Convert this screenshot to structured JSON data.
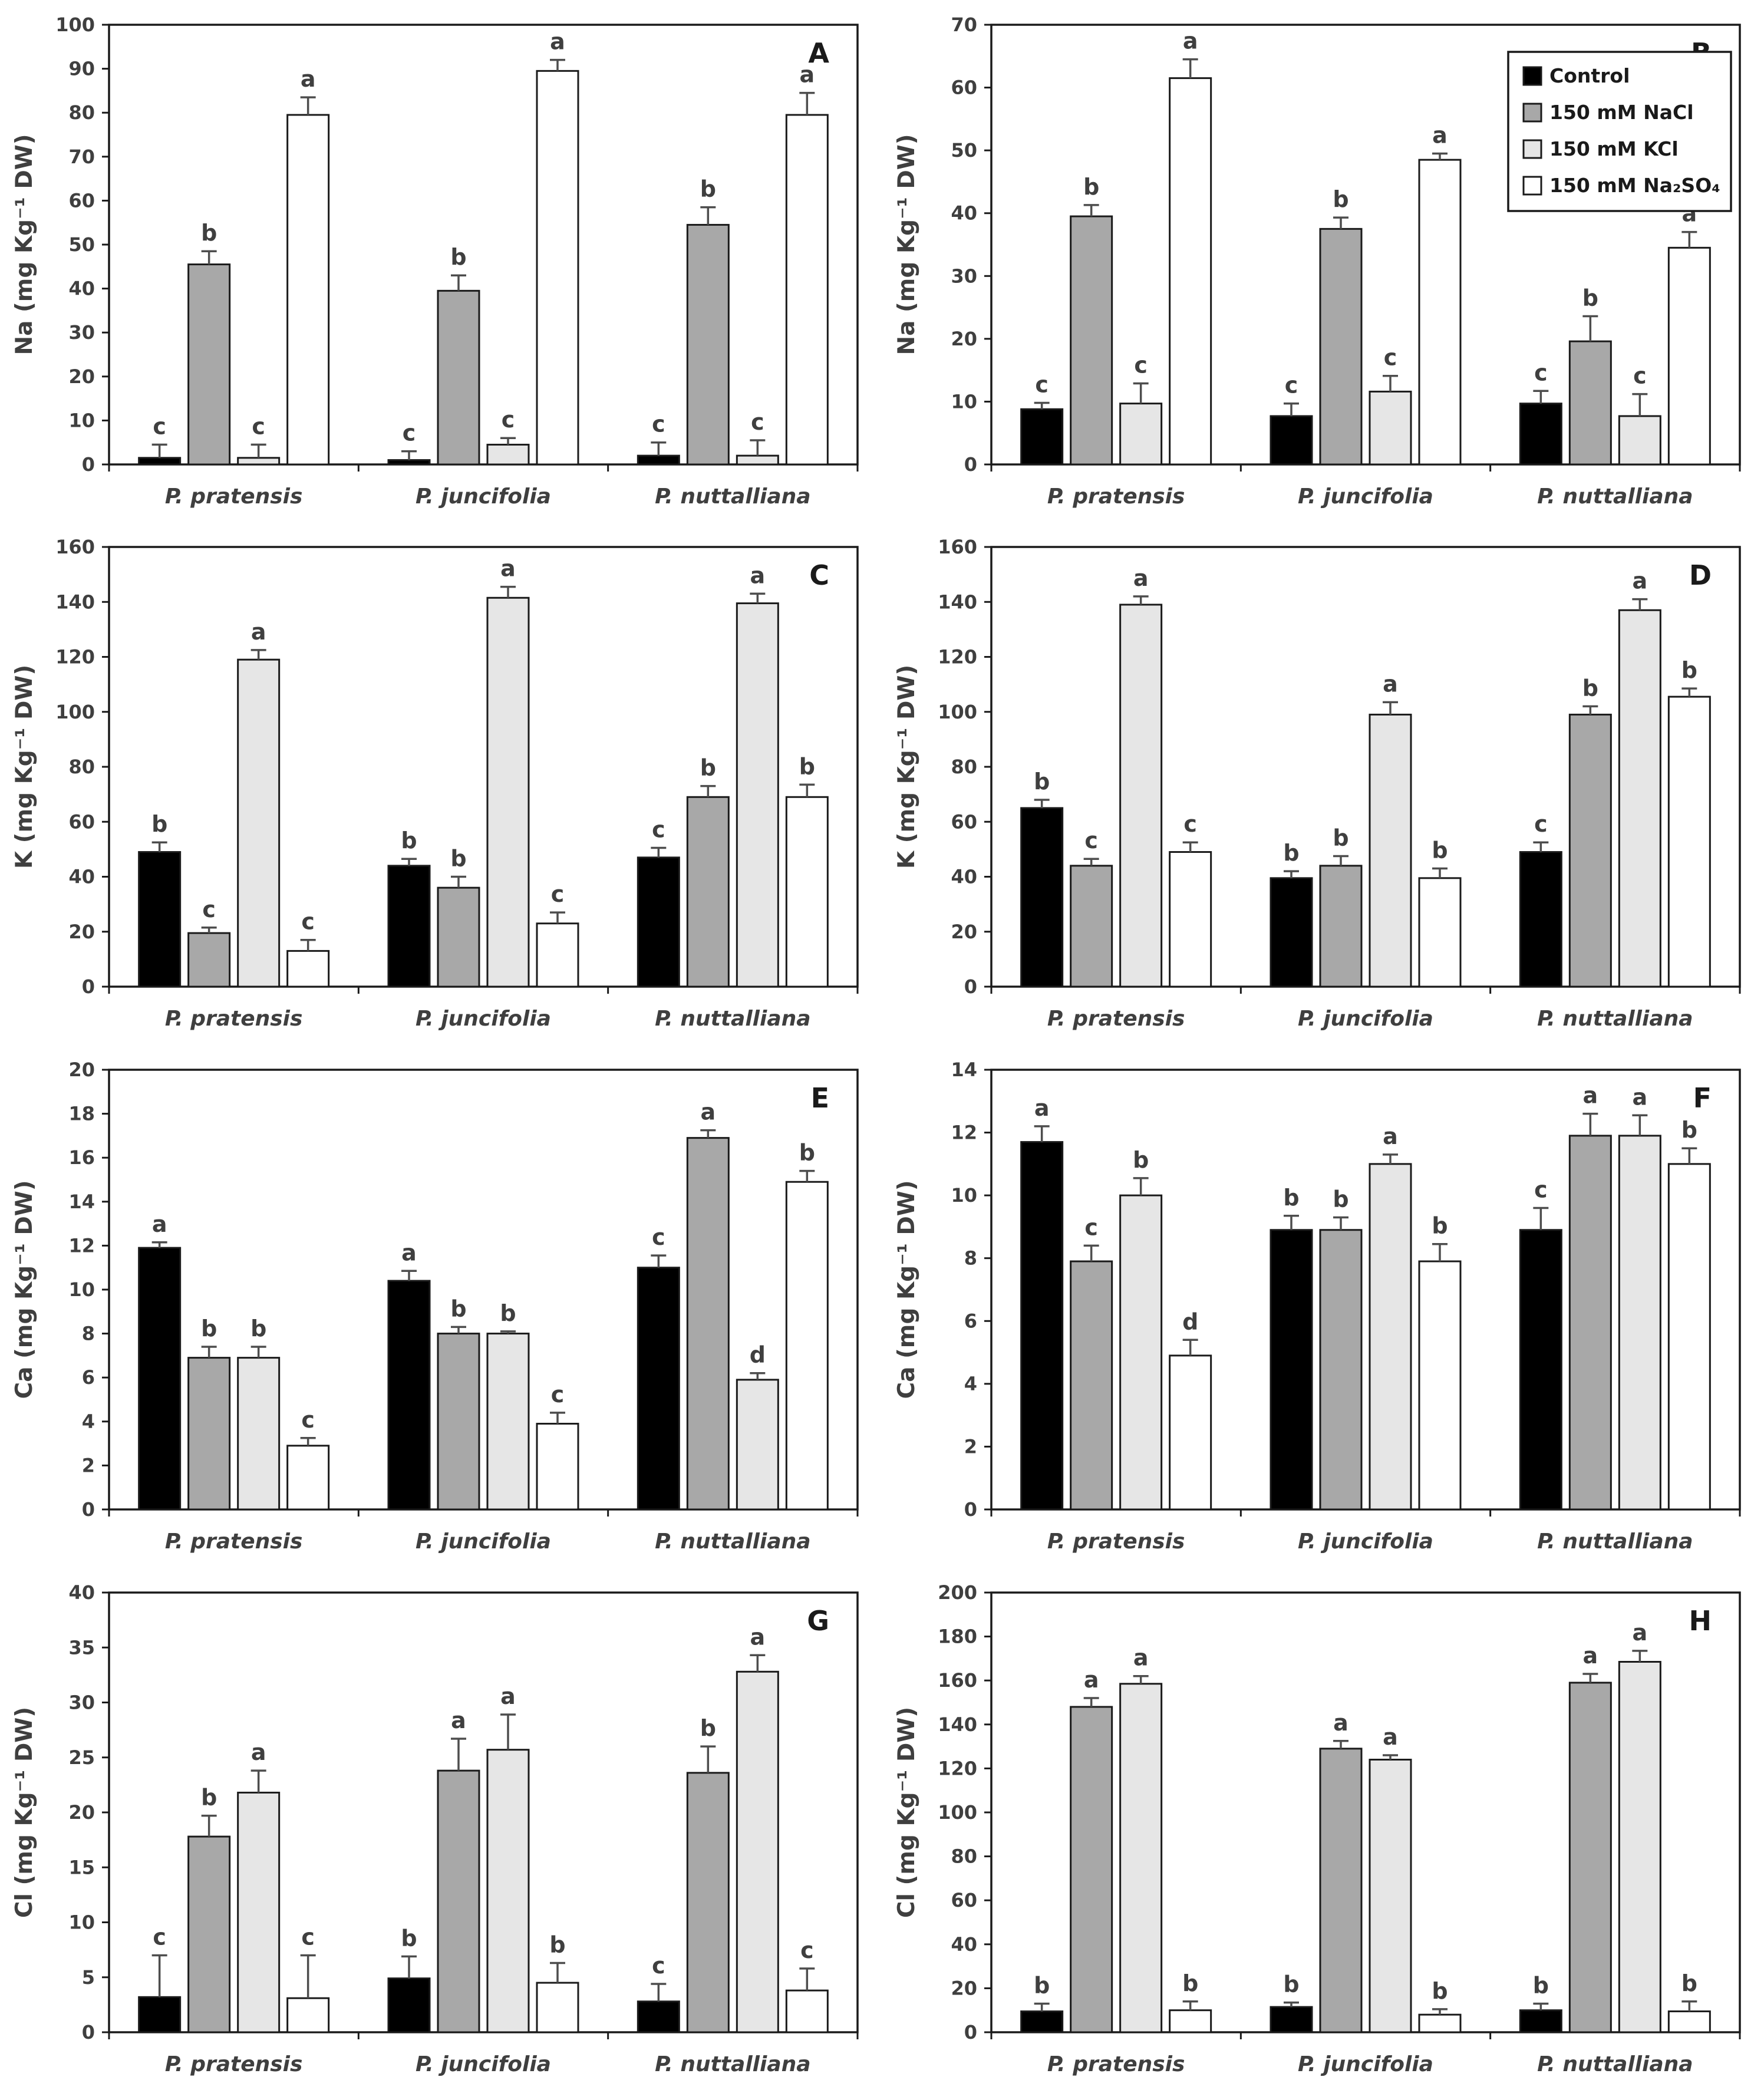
{
  "figure_title": "",
  "species": [
    "P. pratensis",
    "P. juncifolia",
    "P. nuttalliana"
  ],
  "treatments": [
    "Control",
    "150 mM NaCl",
    "150 mM KCl",
    "150 mM Na₂SO₄"
  ],
  "legend": {
    "entries": [
      "Control",
      "150 mM NaCl",
      "150 mM KCl",
      "150 mM Na₂SO₄"
    ],
    "position": "top-right-panel-B"
  },
  "colors": {
    "bar_fills": [
      "#000000",
      "#a8a8a8",
      "#e6e6e6",
      "#ffffff"
    ],
    "bar_border": "#1a1a1a",
    "axis": "#1a1a1a",
    "error_bar": "#4d4d4d",
    "text": "#3f3f3f",
    "panel_letter": "#1a1a1a",
    "background": "#ffffff"
  },
  "chart_data": [
    {
      "type": "bar",
      "panel": "A",
      "ylabel": "Na (mg Kg⁻¹ DW)",
      "xlabel": "",
      "ylim": [
        0,
        100
      ],
      "ystep": 10,
      "grid": false,
      "show_legend": false,
      "categories": [
        "P. pratensis",
        "P. juncifolia",
        "P. nuttalliana"
      ],
      "series": [
        {
          "name": "Control",
          "values": [
            1.5,
            1.0,
            2.0
          ],
          "errors": [
            3.0,
            2.0,
            3.0
          ],
          "letters": [
            "c",
            "c",
            "c"
          ]
        },
        {
          "name": "150 mM NaCl",
          "values": [
            45.5,
            39.5,
            54.5
          ],
          "errors": [
            3.0,
            3.5,
            4.0
          ],
          "letters": [
            "b",
            "b",
            "b"
          ]
        },
        {
          "name": "150 mM KCl",
          "values": [
            1.5,
            4.5,
            2.0
          ],
          "errors": [
            3.0,
            1.5,
            3.5
          ],
          "letters": [
            "c",
            "c",
            "c"
          ]
        },
        {
          "name": "150 mM Na₂SO₄",
          "values": [
            79.5,
            89.5,
            79.5
          ],
          "errors": [
            4.0,
            2.5,
            5.0
          ],
          "letters": [
            "a",
            "a",
            "a"
          ]
        }
      ]
    },
    {
      "type": "bar",
      "panel": "B",
      "ylabel": "Na (mg Kg⁻¹ DW)",
      "xlabel": "",
      "ylim": [
        0,
        70
      ],
      "ystep": 10,
      "grid": false,
      "show_legend": true,
      "categories": [
        "P. pratensis",
        "P. juncifolia",
        "P. nuttalliana"
      ],
      "series": [
        {
          "name": "Control",
          "values": [
            8.8,
            7.7,
            9.7
          ],
          "errors": [
            1.0,
            2.0,
            2.0
          ],
          "letters": [
            "c",
            "c",
            "c"
          ]
        },
        {
          "name": "150 mM NaCl",
          "values": [
            39.5,
            37.5,
            19.6
          ],
          "errors": [
            1.8,
            1.8,
            4.0
          ],
          "letters": [
            "b",
            "b",
            "b"
          ]
        },
        {
          "name": "150 mM KCl",
          "values": [
            9.7,
            11.6,
            7.7
          ],
          "errors": [
            3.2,
            2.5,
            3.5
          ],
          "letters": [
            "c",
            "c",
            "c"
          ]
        },
        {
          "name": "150 mM Na₂SO₄",
          "values": [
            61.5,
            48.5,
            34.5
          ],
          "errors": [
            3.0,
            1.0,
            2.5
          ],
          "letters": [
            "a",
            "a",
            "a"
          ]
        }
      ]
    },
    {
      "type": "bar",
      "panel": "C",
      "ylabel": "K (mg Kg⁻¹ DW)",
      "xlabel": "",
      "ylim": [
        0,
        160
      ],
      "ystep": 20,
      "grid": false,
      "show_legend": false,
      "categories": [
        "P. pratensis",
        "P. juncifolia",
        "P. nuttalliana"
      ],
      "series": [
        {
          "name": "Control",
          "values": [
            49.0,
            44.0,
            47.0
          ],
          "errors": [
            3.5,
            2.5,
            3.5
          ],
          "letters": [
            "b",
            "b",
            "c"
          ]
        },
        {
          "name": "150 mM NaCl",
          "values": [
            19.5,
            36.0,
            69.0
          ],
          "errors": [
            2.0,
            4.0,
            4.0
          ],
          "letters": [
            "c",
            "b",
            "b"
          ]
        },
        {
          "name": "150 mM KCl",
          "values": [
            119.0,
            141.5,
            139.5
          ],
          "errors": [
            3.5,
            4.0,
            3.5
          ],
          "letters": [
            "a",
            "a",
            "a"
          ]
        },
        {
          "name": "150 mM Na₂SO₄",
          "values": [
            13.0,
            23.0,
            69.0
          ],
          "errors": [
            4.0,
            4.0,
            4.5
          ],
          "letters": [
            "c",
            "c",
            "b"
          ]
        }
      ]
    },
    {
      "type": "bar",
      "panel": "D",
      "ylabel": "K (mg Kg⁻¹ DW)",
      "xlabel": "",
      "ylim": [
        0,
        160
      ],
      "ystep": 20,
      "grid": false,
      "show_legend": false,
      "categories": [
        "P. pratensis",
        "P. juncifolia",
        "P. nuttalliana"
      ],
      "series": [
        {
          "name": "Control",
          "values": [
            65.0,
            39.5,
            49.0
          ],
          "errors": [
            3.0,
            2.5,
            3.5
          ],
          "letters": [
            "b",
            "b",
            "c"
          ]
        },
        {
          "name": "150 mM NaCl",
          "values": [
            44.0,
            44.0,
            99.0
          ],
          "errors": [
            2.5,
            3.5,
            3.0
          ],
          "letters": [
            "c",
            "b",
            "b"
          ]
        },
        {
          "name": "150 mM KCl",
          "values": [
            139.0,
            99.0,
            137.0
          ],
          "errors": [
            3.0,
            4.5,
            4.0
          ],
          "letters": [
            "a",
            "a",
            "a"
          ]
        },
        {
          "name": "150 mM Na₂SO₄",
          "values": [
            49.0,
            39.5,
            105.5
          ],
          "errors": [
            3.5,
            3.5,
            3.0
          ],
          "letters": [
            "c",
            "b",
            "b"
          ]
        }
      ]
    },
    {
      "type": "bar",
      "panel": "E",
      "ylabel": "Ca (mg Kg⁻¹ DW)",
      "xlabel": "",
      "ylim": [
        0,
        20
      ],
      "ystep": 2,
      "grid": false,
      "show_legend": false,
      "categories": [
        "P. pratensis",
        "P. juncifolia",
        "P. nuttalliana"
      ],
      "series": [
        {
          "name": "Control",
          "values": [
            11.9,
            10.4,
            11.0
          ],
          "errors": [
            0.25,
            0.45,
            0.55
          ],
          "letters": [
            "a",
            "a",
            "c"
          ]
        },
        {
          "name": "150 mM NaCl",
          "values": [
            6.9,
            8.0,
            16.9
          ],
          "errors": [
            0.5,
            0.3,
            0.35
          ],
          "letters": [
            "b",
            "b",
            "a"
          ]
        },
        {
          "name": "150 mM KCl",
          "values": [
            6.9,
            8.0,
            5.9
          ],
          "errors": [
            0.5,
            0.1,
            0.3
          ],
          "letters": [
            "b",
            "b",
            "d"
          ]
        },
        {
          "name": "150 mM Na₂SO₄",
          "values": [
            2.9,
            3.9,
            14.9
          ],
          "errors": [
            0.35,
            0.5,
            0.5
          ],
          "letters": [
            "c",
            "c",
            "b"
          ]
        }
      ]
    },
    {
      "type": "bar",
      "panel": "F",
      "ylabel": "Ca (mg Kg⁻¹ DW)",
      "xlabel": "",
      "ylim": [
        0,
        14
      ],
      "ystep": 2,
      "grid": false,
      "show_legend": false,
      "categories": [
        "P. pratensis",
        "P. juncifolia",
        "P. nuttalliana"
      ],
      "series": [
        {
          "name": "Control",
          "values": [
            11.7,
            8.9,
            8.9
          ],
          "errors": [
            0.5,
            0.45,
            0.7
          ],
          "letters": [
            "a",
            "b",
            "c"
          ]
        },
        {
          "name": "150 mM NaCl",
          "values": [
            7.9,
            8.9,
            11.9
          ],
          "errors": [
            0.5,
            0.4,
            0.7
          ],
          "letters": [
            "c",
            "b",
            "a"
          ]
        },
        {
          "name": "150 mM KCl",
          "values": [
            10.0,
            11.0,
            11.9
          ],
          "errors": [
            0.55,
            0.3,
            0.65
          ],
          "letters": [
            "b",
            "a",
            "a"
          ]
        },
        {
          "name": "150 mM Na₂SO₄",
          "values": [
            4.9,
            7.9,
            11.0
          ],
          "errors": [
            0.5,
            0.55,
            0.5
          ],
          "letters": [
            "d",
            "b",
            "b"
          ]
        }
      ]
    },
    {
      "type": "bar",
      "panel": "G",
      "ylabel": "Cl (mg Kg⁻¹ DW)",
      "xlabel": "",
      "ylim": [
        0,
        40
      ],
      "ystep": 5,
      "grid": false,
      "show_legend": false,
      "categories": [
        "P. pratensis",
        "P. juncifolia",
        "P. nuttalliana"
      ],
      "series": [
        {
          "name": "Control",
          "values": [
            3.2,
            4.9,
            2.8
          ],
          "errors": [
            3.8,
            2.0,
            1.6
          ],
          "letters": [
            "c",
            "b",
            "c"
          ]
        },
        {
          "name": "150 mM NaCl",
          "values": [
            17.8,
            23.8,
            23.6
          ],
          "errors": [
            1.9,
            2.9,
            2.4
          ],
          "letters": [
            "b",
            "a",
            "b"
          ]
        },
        {
          "name": "150 mM KCl",
          "values": [
            21.8,
            25.7,
            32.8
          ],
          "errors": [
            2.0,
            3.2,
            1.5
          ],
          "letters": [
            "a",
            "a",
            "a"
          ]
        },
        {
          "name": "150 mM Na₂SO₄",
          "values": [
            3.1,
            4.5,
            3.8
          ],
          "errors": [
            3.9,
            1.8,
            2.0
          ],
          "letters": [
            "c",
            "b",
            "c"
          ]
        }
      ]
    },
    {
      "type": "bar",
      "panel": "H",
      "ylabel": "Cl (mg Kg⁻¹ DW)",
      "xlabel": "",
      "ylim": [
        0,
        200
      ],
      "ystep": 20,
      "grid": false,
      "show_legend": false,
      "categories": [
        "P. pratensis",
        "P. juncifolia",
        "P. nuttalliana"
      ],
      "series": [
        {
          "name": "Control",
          "values": [
            9.5,
            11.5,
            10.0
          ],
          "errors": [
            3.5,
            2.0,
            3.0
          ],
          "letters": [
            "b",
            "b",
            "b"
          ]
        },
        {
          "name": "150 mM NaCl",
          "values": [
            148.0,
            129.0,
            159.0
          ],
          "errors": [
            4.0,
            3.5,
            4.0
          ],
          "letters": [
            "a",
            "a",
            "a"
          ]
        },
        {
          "name": "150 mM KCl",
          "values": [
            158.5,
            124.0,
            168.5
          ],
          "errors": [
            3.5,
            2.0,
            5.0
          ],
          "letters": [
            "a",
            "a",
            "a"
          ]
        },
        {
          "name": "150 mM Na₂SO₄",
          "values": [
            10.0,
            8.0,
            9.5
          ],
          "errors": [
            4.0,
            2.5,
            4.5
          ],
          "letters": [
            "b",
            "b",
            "b"
          ]
        }
      ]
    }
  ]
}
